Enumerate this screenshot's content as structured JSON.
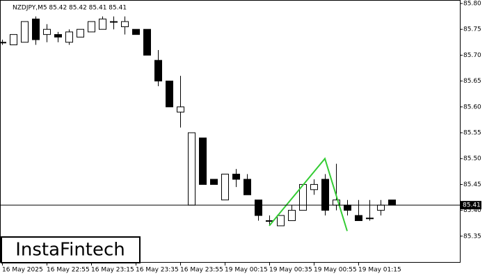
{
  "chart_data": {
    "type": "candlestick",
    "title": "NZDJPY,M5  85.42 85.42 85.41 85.41",
    "watermark": "InstaFintech",
    "categories": [
      "16 May 2025",
      null,
      null,
      null,
      "16 May 22:55",
      null,
      null,
      null,
      "16 May 23:15",
      null,
      null,
      null,
      "16 May 23:35",
      null,
      null,
      null,
      "16 May 23:55",
      null,
      null,
      null,
      "19 May 00:15",
      null,
      null,
      null,
      "19 May 00:35",
      null,
      null,
      null,
      "19 May 00:55",
      null,
      null,
      null,
      "19 May 01:15",
      null,
      null,
      null
    ],
    "open": [
      85.725,
      85.72,
      85.725,
      85.77,
      85.74,
      85.74,
      85.725,
      85.735,
      85.745,
      85.75,
      85.765,
      85.755,
      85.75,
      85.75,
      85.69,
      85.65,
      85.59,
      85.41,
      85.54,
      85.46,
      85.42,
      85.47,
      85.46,
      85.42,
      85.38,
      85.37,
      85.38,
      85.4,
      85.44,
      85.46,
      85.41,
      85.41,
      85.39,
      85.385,
      85.4,
      85.42
    ],
    "high": [
      85.73,
      85.74,
      85.765,
      85.775,
      85.76,
      85.745,
      85.75,
      85.75,
      85.765,
      85.775,
      85.775,
      85.775,
      85.75,
      85.75,
      85.71,
      85.65,
      85.66,
      85.55,
      85.54,
      85.46,
      85.47,
      85.48,
      85.47,
      85.42,
      85.39,
      85.39,
      85.41,
      85.45,
      85.46,
      85.47,
      85.49,
      85.42,
      85.42,
      85.42,
      85.42,
      85.42
    ],
    "low": [
      85.72,
      85.72,
      85.725,
      85.72,
      85.725,
      85.725,
      85.72,
      85.735,
      85.745,
      85.75,
      85.75,
      85.74,
      85.74,
      85.7,
      85.64,
      85.6,
      85.56,
      85.41,
      85.45,
      85.45,
      85.42,
      85.445,
      85.43,
      85.38,
      85.37,
      85.37,
      85.38,
      85.4,
      85.43,
      85.39,
      85.4,
      85.39,
      85.38,
      85.38,
      85.39,
      85.41
    ],
    "close": [
      85.725,
      85.74,
      85.765,
      85.73,
      85.75,
      85.735,
      85.745,
      85.75,
      85.765,
      85.77,
      85.765,
      85.765,
      85.74,
      85.7,
      85.65,
      85.6,
      85.6,
      85.55,
      85.45,
      85.45,
      85.47,
      85.46,
      85.43,
      85.39,
      85.38,
      85.39,
      85.4,
      85.45,
      85.45,
      85.4,
      85.42,
      85.4,
      85.38,
      85.385,
      85.41,
      85.41
    ],
    "current_price": 85.41,
    "ylim": [
      85.3,
      85.8
    ],
    "yticks": [
      {
        "value": 85.8,
        "label": "85.80"
      },
      85.75,
      {
        "value": 85.7,
        "label": "85.70"
      },
      85.65,
      {
        "value": 85.6,
        "label": "85.60"
      },
      85.55,
      {
        "value": 85.5,
        "label": "85.50"
      },
      85.45,
      {
        "value": 85.4,
        "label": "85.40"
      },
      85.35
    ],
    "pattern_color": "#33cc33"
  }
}
